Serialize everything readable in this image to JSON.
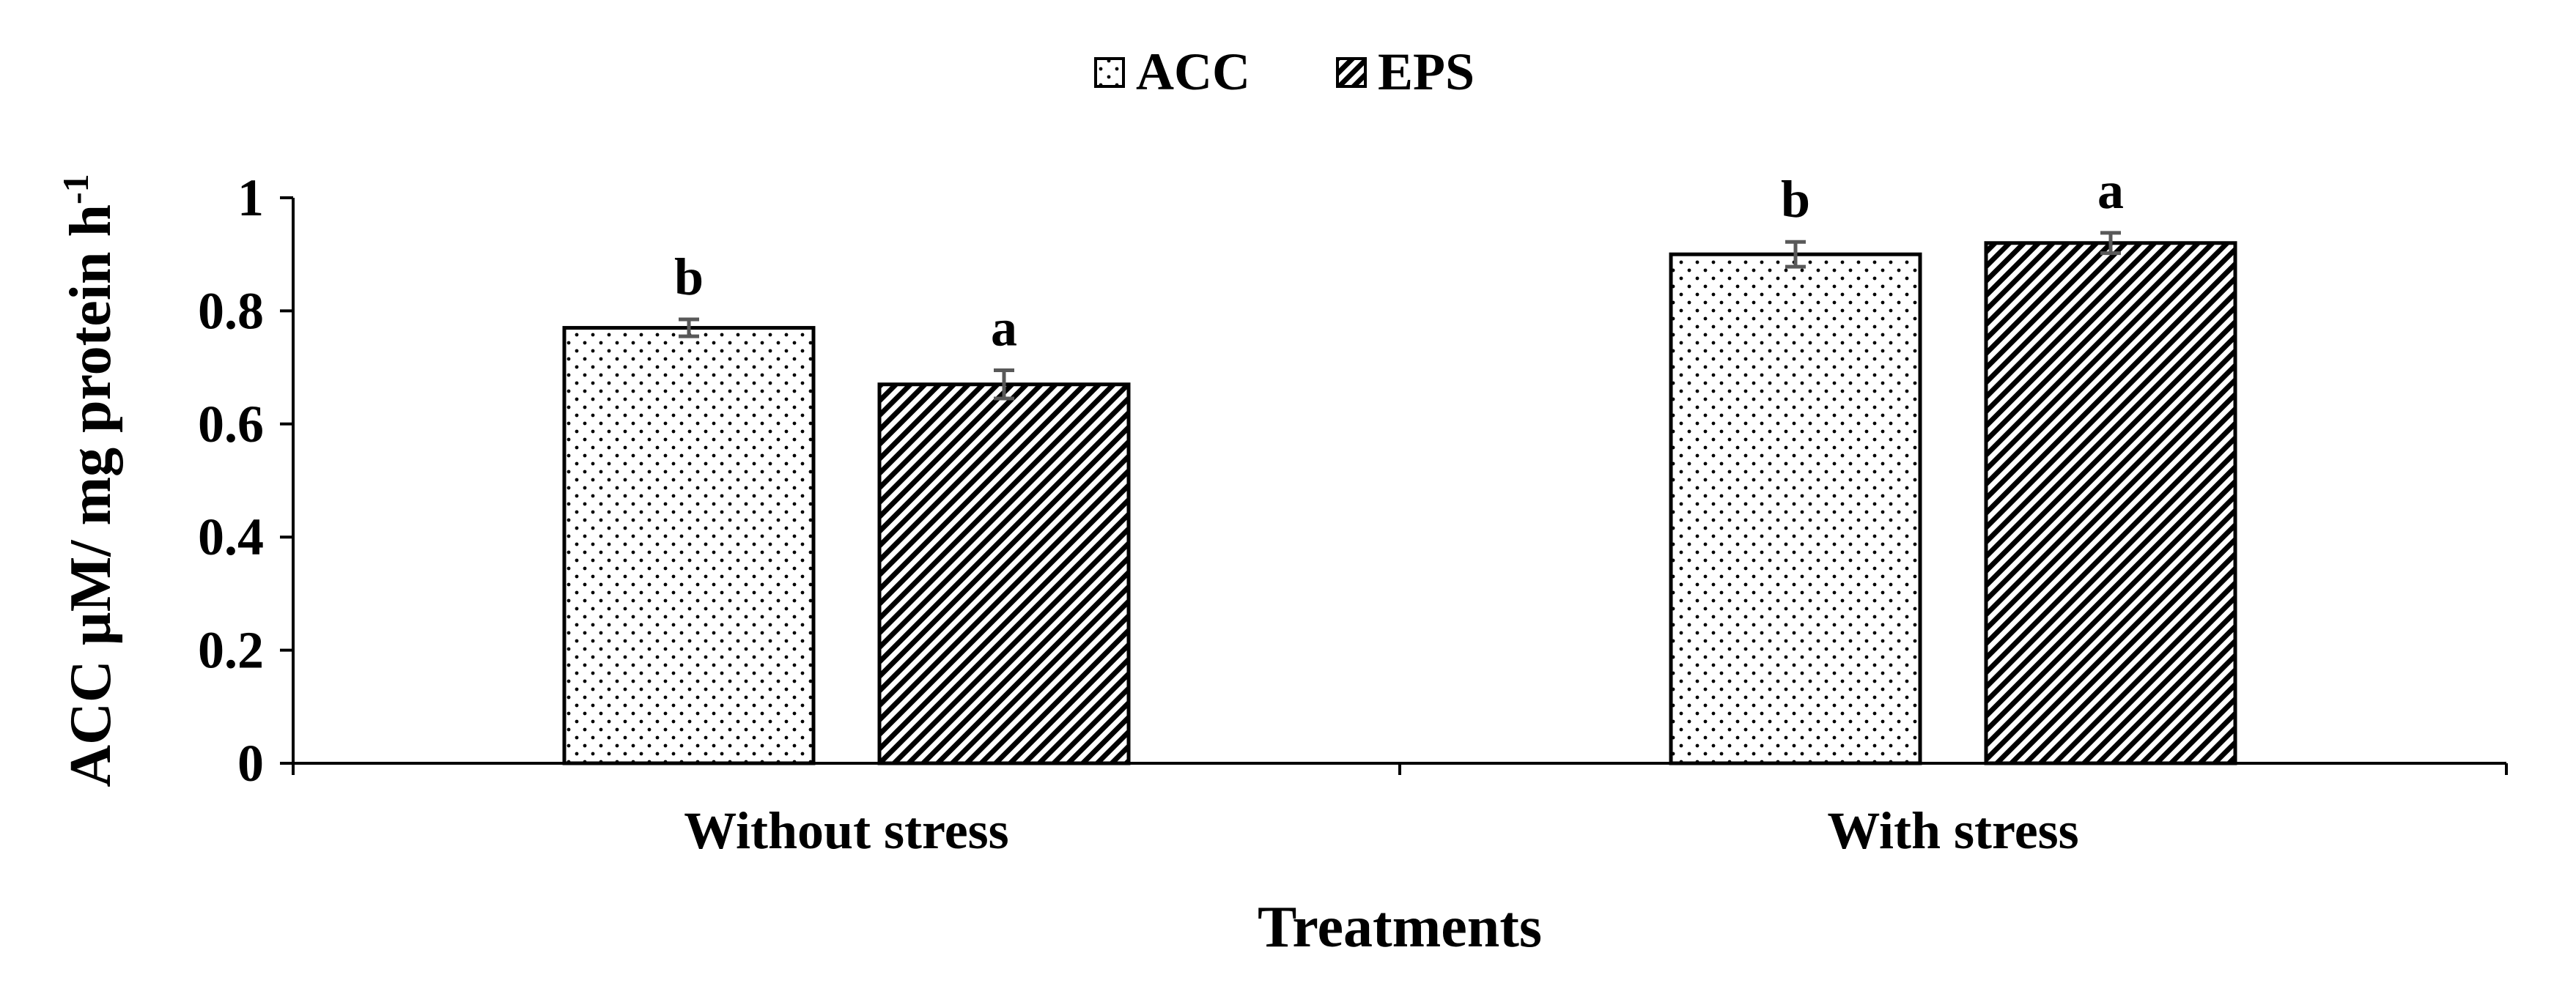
{
  "chart_data": {
    "type": "bar",
    "categories": [
      "Without stress",
      "With stress"
    ],
    "series": [
      {
        "name": "ACC",
        "pattern": "dots",
        "values": [
          0.77,
          0.9
        ],
        "errors": [
          0.015,
          0.022
        ],
        "labels": [
          "b",
          "b"
        ]
      },
      {
        "name": "EPS",
        "pattern": "hatch",
        "values": [
          0.67,
          0.92
        ],
        "errors": [
          0.025,
          0.018
        ],
        "labels": [
          "a",
          "a"
        ]
      }
    ],
    "title": "",
    "xlabel": "Treatments",
    "ylabel_main": "ACC µM/ mg protein h",
    "ylabel_sup": "-1",
    "ylim": [
      0,
      1
    ],
    "yticks": [
      "0",
      "0.2",
      "0.4",
      "0.6",
      "0.8",
      "1"
    ],
    "grid": false,
    "legend_position": "top-center",
    "colors": {
      "bar_outline": "#000000",
      "pattern_ink": "#000000",
      "background": "#ffffff",
      "error_bar": "#595959"
    }
  }
}
